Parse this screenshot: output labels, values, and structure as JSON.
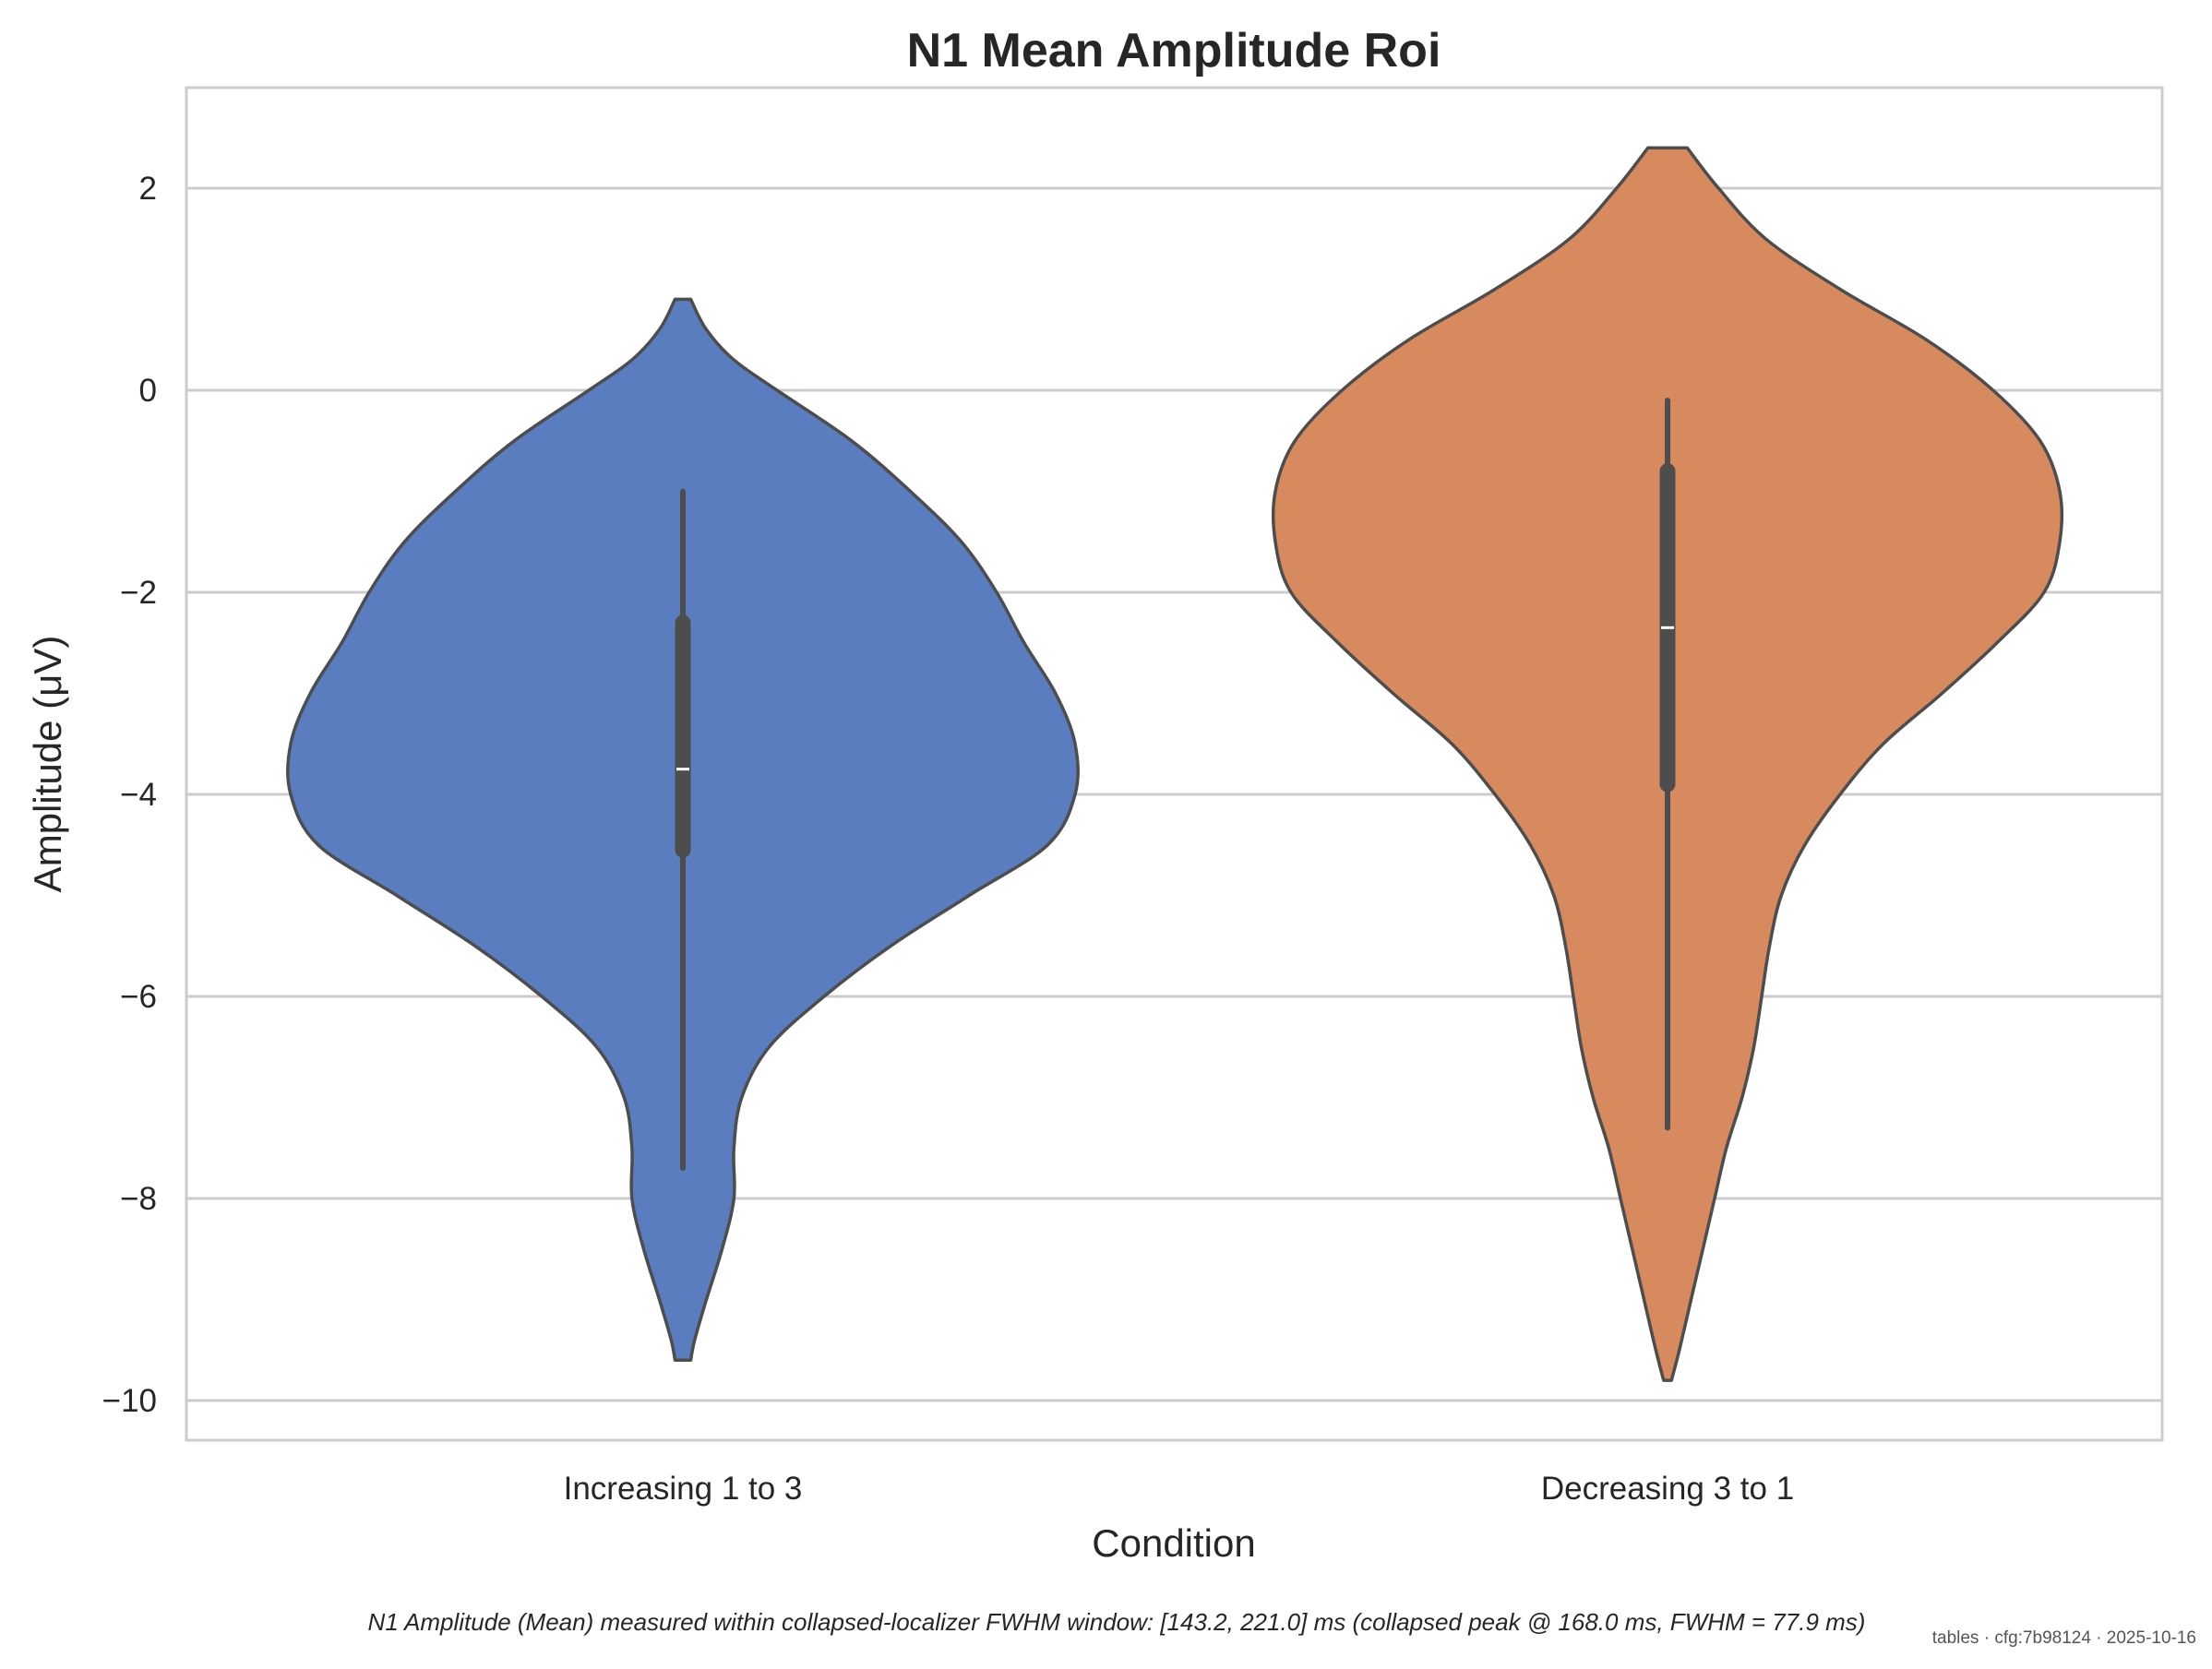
{
  "chart_data": {
    "type": "violin",
    "title": "N1 Mean Amplitude Roi",
    "xlabel": "Condition",
    "ylabel": "Amplitude (μV)",
    "ylim": [
      -10.4,
      3.0
    ],
    "yticks": [
      2,
      0,
      -2,
      -4,
      -6,
      -8,
      -10
    ],
    "ytick_labels": [
      "2",
      "0",
      "−2",
      "−4",
      "−6",
      "−8",
      "−10"
    ],
    "grid": true,
    "categories": [
      "Increasing 1 to 3",
      "Decreasing 3 to 1"
    ],
    "series": [
      {
        "category": "Increasing 1 to 3",
        "color": "#5a7dbf",
        "min": -7.7,
        "q1": -4.55,
        "median": -3.75,
        "q3": -2.3,
        "max": -1.0,
        "density_top": 0.9,
        "density_bottom": -9.6,
        "density_profile": [
          [
            0.9,
            0.02
          ],
          [
            0.6,
            0.06
          ],
          [
            0.3,
            0.13
          ],
          [
            0.0,
            0.24
          ],
          [
            -0.5,
            0.43
          ],
          [
            -1.0,
            0.58
          ],
          [
            -1.5,
            0.71
          ],
          [
            -2.0,
            0.8
          ],
          [
            -2.5,
            0.87
          ],
          [
            -3.0,
            0.95
          ],
          [
            -3.5,
            1.0
          ],
          [
            -4.0,
            1.0
          ],
          [
            -4.5,
            0.93
          ],
          [
            -5.0,
            0.73
          ],
          [
            -5.5,
            0.53
          ],
          [
            -6.0,
            0.36
          ],
          [
            -6.5,
            0.22
          ],
          [
            -7.0,
            0.15
          ],
          [
            -7.5,
            0.13
          ],
          [
            -8.0,
            0.13
          ],
          [
            -8.5,
            0.1
          ],
          [
            -9.0,
            0.06
          ],
          [
            -9.4,
            0.03
          ],
          [
            -9.6,
            0.02
          ]
        ]
      },
      {
        "category": "Decreasing 3 to 1",
        "color": "#d88a5f",
        "min": -7.3,
        "q1": -3.9,
        "median": -2.35,
        "q3": -0.8,
        "max": -0.1,
        "density_top": 2.4,
        "density_bottom": -9.8,
        "density_profile": [
          [
            2.4,
            0.05
          ],
          [
            2.0,
            0.13
          ],
          [
            1.5,
            0.25
          ],
          [
            1.0,
            0.44
          ],
          [
            0.5,
            0.66
          ],
          [
            0.0,
            0.83
          ],
          [
            -0.5,
            0.95
          ],
          [
            -1.0,
            1.0
          ],
          [
            -1.5,
            1.0
          ],
          [
            -2.0,
            0.96
          ],
          [
            -2.5,
            0.84
          ],
          [
            -3.0,
            0.7
          ],
          [
            -3.5,
            0.55
          ],
          [
            -4.0,
            0.44
          ],
          [
            -4.5,
            0.35
          ],
          [
            -5.0,
            0.29
          ],
          [
            -5.5,
            0.26
          ],
          [
            -6.0,
            0.24
          ],
          [
            -6.5,
            0.22
          ],
          [
            -7.0,
            0.19
          ],
          [
            -7.5,
            0.15
          ],
          [
            -8.0,
            0.12
          ],
          [
            -8.5,
            0.09
          ],
          [
            -9.0,
            0.06
          ],
          [
            -9.5,
            0.03
          ],
          [
            -9.8,
            0.01
          ]
        ]
      }
    ]
  },
  "caption": "N1 Amplitude (Mean) measured within collapsed-localizer FWHM window: [143.2, 221.0] ms (collapsed peak @ 168.0 ms, FWHM = 77.9 ms)",
  "footer": "tables · cfg:7b98124 · 2025-10-16",
  "colors": {
    "grid": "#cccccc",
    "frame": "#cccccc",
    "outline": "#4d4d4d",
    "box": "#4d4d4d",
    "median": "#ffffff"
  }
}
